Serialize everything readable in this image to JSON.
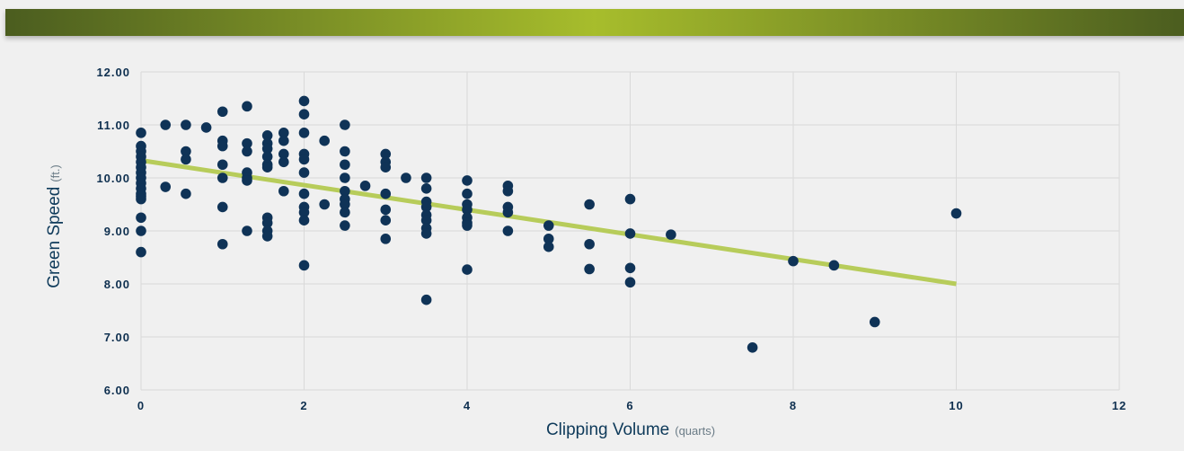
{
  "colors": {
    "header_dark": "#4b5d1f",
    "header_light": "#a7bd2c",
    "point": "#0f3357",
    "trend": "#b7cc5a",
    "grid": "#d9d9d9",
    "background": "#f0f0f0"
  },
  "chart_data": {
    "type": "scatter",
    "title": "",
    "xlabel": "Clipping Volume",
    "xlabel_unit": "(quarts)",
    "ylabel": "Green Speed",
    "ylabel_unit": "(ft.)",
    "xlim": [
      0,
      12
    ],
    "ylim": [
      6,
      12
    ],
    "x_ticks": [
      0,
      2,
      4,
      6,
      8,
      10,
      12
    ],
    "x_tick_labels": [
      "0",
      "2",
      "4",
      "6",
      "8",
      "10",
      "12"
    ],
    "y_ticks": [
      6,
      7,
      8,
      9,
      10,
      11,
      12
    ],
    "y_tick_labels": [
      "6.00",
      "7.00",
      "8.00",
      "9.00",
      "10.00",
      "11.00",
      "12.00"
    ],
    "grid": true,
    "trendline": {
      "x": [
        0,
        10
      ],
      "y": [
        10.33,
        8.0
      ]
    },
    "points": [
      [
        0,
        10.85
      ],
      [
        0,
        10.6
      ],
      [
        0,
        10.5
      ],
      [
        0,
        10.4
      ],
      [
        0,
        10.3
      ],
      [
        0,
        10.2
      ],
      [
        0,
        10.1
      ],
      [
        0,
        10.0
      ],
      [
        0,
        9.9
      ],
      [
        0,
        9.8
      ],
      [
        0,
        9.7
      ],
      [
        0,
        9.65
      ],
      [
        0,
        9.6
      ],
      [
        0,
        9.25
      ],
      [
        0,
        9.0
      ],
      [
        0,
        8.6
      ],
      [
        0.3,
        11.0
      ],
      [
        0.3,
        9.83
      ],
      [
        0.55,
        11.0
      ],
      [
        0.55,
        10.5
      ],
      [
        0.55,
        10.35
      ],
      [
        0.55,
        9.7
      ],
      [
        0.8,
        10.95
      ],
      [
        1.0,
        11.25
      ],
      [
        1.0,
        10.7
      ],
      [
        1.0,
        10.6
      ],
      [
        1.0,
        10.25
      ],
      [
        1.0,
        10.0
      ],
      [
        1.0,
        9.45
      ],
      [
        1.0,
        8.75
      ],
      [
        1.3,
        11.35
      ],
      [
        1.3,
        10.65
      ],
      [
        1.3,
        10.5
      ],
      [
        1.3,
        10.1
      ],
      [
        1.3,
        10.0
      ],
      [
        1.3,
        9.95
      ],
      [
        1.3,
        9.0
      ],
      [
        1.55,
        10.8
      ],
      [
        1.55,
        10.65
      ],
      [
        1.55,
        10.55
      ],
      [
        1.55,
        10.4
      ],
      [
        1.55,
        10.25
      ],
      [
        1.55,
        10.2
      ],
      [
        1.55,
        9.25
      ],
      [
        1.55,
        9.15
      ],
      [
        1.55,
        9.0
      ],
      [
        1.55,
        8.9
      ],
      [
        1.75,
        10.85
      ],
      [
        1.75,
        10.7
      ],
      [
        1.75,
        10.45
      ],
      [
        1.75,
        10.3
      ],
      [
        1.75,
        9.75
      ],
      [
        2.0,
        11.45
      ],
      [
        2.0,
        11.2
      ],
      [
        2.0,
        10.85
      ],
      [
        2.0,
        10.45
      ],
      [
        2.0,
        10.35
      ],
      [
        2.0,
        10.1
      ],
      [
        2.0,
        9.7
      ],
      [
        2.0,
        9.45
      ],
      [
        2.0,
        9.35
      ],
      [
        2.0,
        9.2
      ],
      [
        2.0,
        8.35
      ],
      [
        2.25,
        10.7
      ],
      [
        2.25,
        9.5
      ],
      [
        2.5,
        11.0
      ],
      [
        2.5,
        10.5
      ],
      [
        2.5,
        10.25
      ],
      [
        2.5,
        10.0
      ],
      [
        2.5,
        9.75
      ],
      [
        2.5,
        9.6
      ],
      [
        2.5,
        9.5
      ],
      [
        2.5,
        9.35
      ],
      [
        2.5,
        9.1
      ],
      [
        2.75,
        9.85
      ],
      [
        3.0,
        10.45
      ],
      [
        3.0,
        10.3
      ],
      [
        3.0,
        10.2
      ],
      [
        3.0,
        9.7
      ],
      [
        3.0,
        9.4
      ],
      [
        3.0,
        9.2
      ],
      [
        3.0,
        8.85
      ],
      [
        3.25,
        10.0
      ],
      [
        3.5,
        10.0
      ],
      [
        3.5,
        9.8
      ],
      [
        3.5,
        9.55
      ],
      [
        3.5,
        9.45
      ],
      [
        3.5,
        9.3
      ],
      [
        3.5,
        9.2
      ],
      [
        3.5,
        9.05
      ],
      [
        3.5,
        8.95
      ],
      [
        3.5,
        7.7
      ],
      [
        4.0,
        9.95
      ],
      [
        4.0,
        9.7
      ],
      [
        4.0,
        9.5
      ],
      [
        4.0,
        9.4
      ],
      [
        4.0,
        9.25
      ],
      [
        4.0,
        9.15
      ],
      [
        4.0,
        9.1
      ],
      [
        4.0,
        8.27
      ],
      [
        4.5,
        9.85
      ],
      [
        4.5,
        9.75
      ],
      [
        4.5,
        9.45
      ],
      [
        4.5,
        9.35
      ],
      [
        4.5,
        9.0
      ],
      [
        5.0,
        9.1
      ],
      [
        5.0,
        8.85
      ],
      [
        5.0,
        8.7
      ],
      [
        5.5,
        9.5
      ],
      [
        5.5,
        8.75
      ],
      [
        5.5,
        8.28
      ],
      [
        6.0,
        9.6
      ],
      [
        6.0,
        8.95
      ],
      [
        6.0,
        8.3
      ],
      [
        6.0,
        8.03
      ],
      [
        6.5,
        8.93
      ],
      [
        7.5,
        6.8
      ],
      [
        8.0,
        8.43
      ],
      [
        8.5,
        8.35
      ],
      [
        9.0,
        7.28
      ],
      [
        10.0,
        9.33
      ]
    ]
  }
}
